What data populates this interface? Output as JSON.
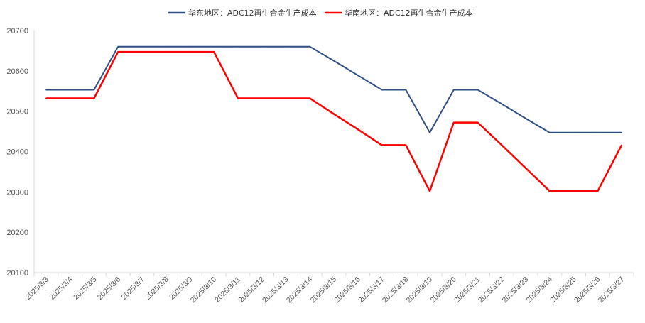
{
  "chart_data": {
    "type": "line",
    "title": "",
    "xlabel": "",
    "ylabel": "",
    "ylim": [
      20100,
      20700
    ],
    "yticks": [
      20100,
      20200,
      20300,
      20400,
      20500,
      20600,
      20700
    ],
    "grid": false,
    "legend_position": "top-center",
    "categories": [
      "2025/3/3",
      "2025/3/4",
      "2025/3/5",
      "2025/3/6",
      "2025/3/7",
      "2025/3/8",
      "2025/3/9",
      "2025/3/10",
      "2025/3/11",
      "2025/3/12",
      "2025/3/13",
      "2025/3/14",
      "2025/3/15",
      "2025/3/16",
      "2025/3/17",
      "2025/3/18",
      "2025/3/19",
      "2025/3/20",
      "2025/3/21",
      "2025/3/22",
      "2025/3/23",
      "2025/3/24",
      "2025/3/25",
      "2025/3/26",
      "2025/3/27"
    ],
    "series": [
      {
        "name": "华东地区：ADC12再生合金生产成本",
        "color": "#2f4f86",
        "values": [
          20553,
          20553,
          20553,
          20660,
          20660,
          20660,
          20660,
          20660,
          20660,
          20660,
          20660,
          20660,
          20625,
          20589,
          20553,
          20553,
          20447,
          20553,
          20553,
          20518,
          20482,
          20447,
          20447,
          20447,
          20447
        ]
      },
      {
        "name": "华南地区：ADC12再生合金生产成本",
        "color": "#ff0000",
        "values": [
          20532,
          20532,
          20532,
          20647,
          20647,
          20647,
          20647,
          20647,
          20532,
          20532,
          20532,
          20532,
          20493,
          20455,
          20416,
          20416,
          20302,
          20472,
          20472,
          20416,
          20359,
          20302,
          20302,
          20302,
          20416
        ]
      }
    ]
  }
}
